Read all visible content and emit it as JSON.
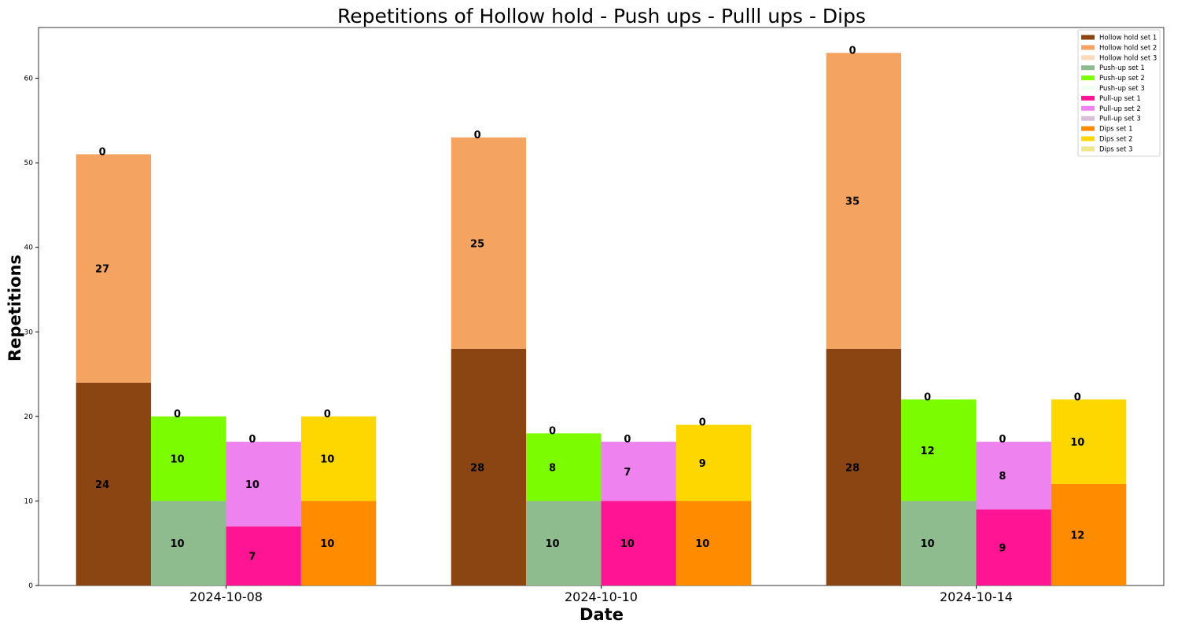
{
  "chart_data": {
    "type": "bar",
    "title": "Repetitions of Hollow hold - Push ups - Pulll ups - Dips",
    "xlabel": "Date",
    "ylabel": "Repetitions",
    "ylim": [
      0,
      66
    ],
    "yticks": [
      0,
      10,
      20,
      30,
      40,
      50,
      60
    ],
    "categories": [
      "2024-10-08",
      "2024-10-10",
      "2024-10-14"
    ],
    "legend_position": "top-right",
    "grid": false,
    "exercises": [
      {
        "series": [
          {
            "name": "Hollow hold set 1",
            "color": "#8B4513",
            "values": [
              24,
              28,
              28
            ]
          },
          {
            "name": "Hollow hold set 2",
            "color": "#F4A460",
            "values": [
              27,
              25,
              35
            ]
          },
          {
            "name": "Hollow hold set 3",
            "color": "#FFDAB9",
            "values": [
              0,
              0,
              0
            ]
          }
        ]
      },
      {
        "series": [
          {
            "name": "Push-up set 1",
            "color": "#8FBC8F",
            "values": [
              10,
              10,
              10
            ]
          },
          {
            "name": "Push-up set 2",
            "color": "#7CFC00",
            "values": [
              10,
              8,
              12
            ]
          },
          {
            "name": "Push-up set 3",
            "color": "#F0FFF0",
            "values": [
              0,
              0,
              0
            ]
          }
        ]
      },
      {
        "series": [
          {
            "name": "Pull-up set 1",
            "color": "#FF1493",
            "values": [
              7,
              10,
              9
            ]
          },
          {
            "name": "Pull-up set 2",
            "color": "#EE82EE",
            "values": [
              10,
              7,
              8
            ]
          },
          {
            "name": "Pull-up set 3",
            "color": "#D8BFD8",
            "values": [
              0,
              0,
              0
            ]
          }
        ]
      },
      {
        "series": [
          {
            "name": "Dips set 1",
            "color": "#FF8C00",
            "values": [
              10,
              10,
              12
            ]
          },
          {
            "name": "Dips set 2",
            "color": "#FFD700",
            "values": [
              10,
              9,
              10
            ]
          },
          {
            "name": "Dips set 3",
            "color": "#F0E68C",
            "values": [
              0,
              0,
              0
            ]
          }
        ]
      }
    ]
  }
}
